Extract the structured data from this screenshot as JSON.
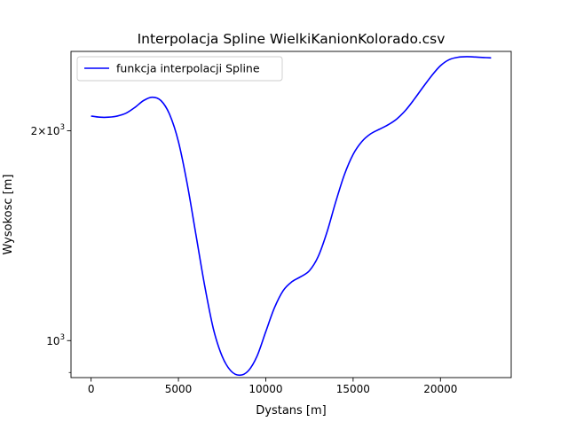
{
  "chart_data": {
    "type": "line",
    "title": "Interpolacja Spline WielkiKanionKolorado.csv",
    "xlabel": "Dystans [m]",
    "ylabel": "Wysokosc [m]",
    "yscale": "log",
    "xlim": [
      -1150,
      24050
    ],
    "ylim": [
      885,
      2600
    ],
    "grid": false,
    "legend": "top-left",
    "x_ticks": [
      0,
      5000,
      10000,
      15000,
      20000
    ],
    "x_tick_labels": [
      "0",
      "5000",
      "10000",
      "15000",
      "20000"
    ],
    "y_major_ticks": [
      1000,
      2000
    ],
    "y_major_labels": [
      {
        "base": "10",
        "exp": "3"
      },
      {
        "coef": "2",
        "times": "×",
        "base": "10",
        "exp": "3"
      }
    ],
    "y_minor_ticks": [
      900
    ],
    "series": [
      {
        "name": "funkcja interpolacji Spline",
        "color": "#0000ff",
        "x": [
          0,
          500,
          1000,
          1500,
          2000,
          2500,
          3000,
          3500,
          4000,
          4500,
          5000,
          5500,
          6000,
          6500,
          7000,
          7500,
          8000,
          8500,
          9000,
          9500,
          10000,
          10500,
          11000,
          11500,
          12000,
          12500,
          13000,
          13500,
          14000,
          14500,
          15000,
          15500,
          16000,
          16500,
          17000,
          17500,
          18000,
          18500,
          19000,
          19500,
          20000,
          20500,
          21000,
          21500,
          22000,
          22500,
          22900
        ],
        "y": [
          2100,
          2092,
          2092,
          2100,
          2120,
          2160,
          2210,
          2235,
          2210,
          2110,
          1930,
          1680,
          1420,
          1200,
          1040,
          950,
          905,
          892,
          905,
          950,
          1030,
          1115,
          1180,
          1215,
          1235,
          1260,
          1320,
          1430,
          1580,
          1730,
          1850,
          1930,
          1980,
          2010,
          2040,
          2080,
          2140,
          2220,
          2310,
          2400,
          2480,
          2530,
          2550,
          2555,
          2552,
          2548,
          2545
        ]
      }
    ]
  }
}
